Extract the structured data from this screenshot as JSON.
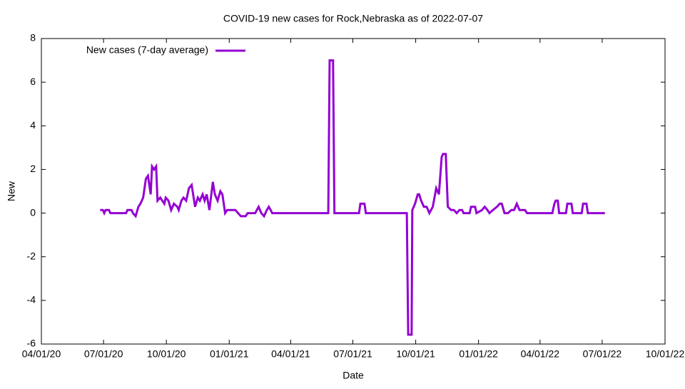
{
  "chart_data": {
    "type": "line",
    "title": "COVID-19 new cases for Rock,Nebraska as of 2022-07-07",
    "xlabel": "Date",
    "ylabel": "New",
    "legend": "top-left",
    "xlim": [
      "2020-04-01",
      "2022-10-01"
    ],
    "xticks": [
      {
        "value": "2020-04-01",
        "label": "04/01/20"
      },
      {
        "value": "2020-07-01",
        "label": "07/01/20"
      },
      {
        "value": "2020-10-01",
        "label": "10/01/20"
      },
      {
        "value": "2021-01-01",
        "label": "01/01/21"
      },
      {
        "value": "2021-04-01",
        "label": "04/01/21"
      },
      {
        "value": "2021-07-01",
        "label": "07/01/21"
      },
      {
        "value": "2021-10-01",
        "label": "10/01/21"
      },
      {
        "value": "2022-01-01",
        "label": "01/01/22"
      },
      {
        "value": "2022-04-01",
        "label": "04/01/22"
      },
      {
        "value": "2022-07-01",
        "label": "07/01/22"
      },
      {
        "value": "2022-10-01",
        "label": "10/01/22"
      }
    ],
    "ylim": [
      -6,
      8
    ],
    "yticks": [
      -6,
      -4,
      -2,
      0,
      2,
      4,
      6,
      8
    ],
    "x": [
      "2020-06-26",
      "2020-06-30",
      "2020-07-02",
      "2020-07-04",
      "2020-07-09",
      "2020-07-11",
      "2020-08-03",
      "2020-08-05",
      "2020-08-11",
      "2020-08-13",
      "2020-08-17",
      "2020-08-21",
      "2020-08-24",
      "2020-08-28",
      "2020-09-01",
      "2020-09-04",
      "2020-09-06",
      "2020-09-08",
      "2020-09-10",
      "2020-09-13",
      "2020-09-16",
      "2020-09-18",
      "2020-09-22",
      "2020-09-25",
      "2020-09-28",
      "2020-09-30",
      "2020-10-04",
      "2020-10-08",
      "2020-10-12",
      "2020-10-17",
      "2020-10-19",
      "2020-10-23",
      "2020-10-26",
      "2020-10-30",
      "2020-11-03",
      "2020-11-07",
      "2020-11-12",
      "2020-11-16",
      "2020-11-19",
      "2020-11-23",
      "2020-11-26",
      "2020-11-29",
      "2020-12-03",
      "2020-12-08",
      "2020-12-11",
      "2020-12-15",
      "2020-12-19",
      "2020-12-22",
      "2020-12-26",
      "2020-12-29",
      "2021-01-10",
      "2021-01-14",
      "2021-01-18",
      "2021-01-25",
      "2021-01-28",
      "2021-02-08",
      "2021-02-13",
      "2021-02-17",
      "2021-02-21",
      "2021-02-25",
      "2021-02-28",
      "2021-03-05",
      "2021-05-26",
      "2021-05-28",
      "2021-06-02",
      "2021-06-04",
      "2021-07-10",
      "2021-07-12",
      "2021-07-18",
      "2021-07-20",
      "2021-09-18",
      "2021-09-20",
      "2021-09-25",
      "2021-09-26",
      "2021-09-30",
      "2021-10-04",
      "2021-10-06",
      "2021-10-09",
      "2021-10-13",
      "2021-10-17",
      "2021-10-21",
      "2021-10-26",
      "2021-10-31",
      "2021-11-04",
      "2021-11-08",
      "2021-11-10",
      "2021-11-14",
      "2021-11-17",
      "2021-11-22",
      "2021-11-26",
      "2021-11-30",
      "2021-12-04",
      "2021-12-08",
      "2021-12-10",
      "2021-12-19",
      "2021-12-21",
      "2021-12-27",
      "2021-12-29",
      "2022-01-06",
      "2022-01-10",
      "2022-01-14",
      "2022-01-17",
      "2022-01-22",
      "2022-01-28",
      "2022-02-01",
      "2022-02-04",
      "2022-02-08",
      "2022-02-13",
      "2022-02-18",
      "2022-02-22",
      "2022-02-26",
      "2022-03-02",
      "2022-03-10",
      "2022-03-13",
      "2022-04-19",
      "2022-04-22",
      "2022-04-24",
      "2022-04-27",
      "2022-04-29",
      "2022-05-09",
      "2022-05-11",
      "2022-05-17",
      "2022-05-19",
      "2022-06-01",
      "2022-06-03",
      "2022-06-08",
      "2022-06-10",
      "2022-07-05"
    ],
    "series": [
      {
        "name": "New cases (7-day average)",
        "color": "#9400d3",
        "values": [
          0.14,
          0.14,
          0,
          0.14,
          0.14,
          0,
          0,
          0.14,
          0.14,
          0,
          -0.14,
          0.29,
          0.43,
          0.71,
          1.57,
          1.71,
          1.29,
          0.86,
          2.14,
          2.0,
          2.14,
          0.57,
          0.71,
          0.57,
          0.43,
          0.71,
          0.57,
          0.14,
          0.43,
          0.29,
          0.14,
          0.57,
          0.71,
          0.57,
          1.14,
          1.29,
          0.29,
          0.71,
          0.57,
          0.86,
          0.57,
          0.86,
          0.14,
          1.43,
          0.86,
          0.57,
          1.0,
          0.86,
          0,
          0.14,
          0.14,
          0,
          -0.14,
          -0.14,
          0,
          0,
          0.29,
          0,
          -0.14,
          0.14,
          0.29,
          0,
          0,
          7,
          7,
          0,
          0,
          0.43,
          0.43,
          0,
          0,
          -5.57,
          -5.57,
          0.14,
          0.43,
          0.86,
          0.86,
          0.57,
          0.29,
          0.29,
          0,
          0.29,
          1.14,
          0.86,
          2.57,
          2.71,
          2.71,
          0.29,
          0.14,
          0.14,
          0,
          0.14,
          0.14,
          0,
          0,
          0.29,
          0.29,
          0,
          0.14,
          0.29,
          0.14,
          0,
          0.14,
          0.29,
          0.43,
          0.43,
          0,
          0,
          0.14,
          0.14,
          0.43,
          0.14,
          0.14,
          0,
          0,
          0.43,
          0.57,
          0.57,
          0,
          0,
          0.43,
          0.43,
          0,
          0,
          0.43,
          0.43,
          0,
          0
        ]
      }
    ]
  }
}
